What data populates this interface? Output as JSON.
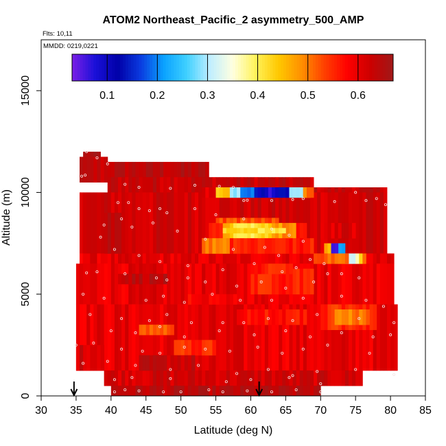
{
  "chart_data": {
    "type": "heatmap",
    "title": "ATOM2 Northeast_Pacific_2 asymmetry_500_AMP",
    "flights_note": "Flts: 10,11",
    "date_note": "MMDD: 0219,0221",
    "xlabel": "Latitude (deg N)",
    "ylabel": "Altitude (m)",
    "xlim": [
      30,
      85
    ],
    "ylim": [
      0,
      17500
    ],
    "xticks": [
      30,
      35,
      40,
      45,
      50,
      55,
      60,
      65,
      70,
      75,
      80,
      85
    ],
    "yticks": [
      0,
      5000,
      10000,
      15000
    ],
    "colorbar": {
      "range": [
        0.03,
        0.67
      ],
      "ticks": [
        0.1,
        0.2,
        0.3,
        0.4,
        0.5,
        0.6
      ],
      "colors": [
        "#7b1fe6",
        "#1a10d8",
        "#0000a8",
        "#0a3ce0",
        "#0aa2ff",
        "#3fd0ff",
        "#bfeeff",
        "#ffffe0",
        "#fff35a",
        "#ffc800",
        "#ff9000",
        "#ff4000",
        "#ff0000",
        "#cc0000",
        "#a01818"
      ]
    },
    "arrows_latitude": [
      34.7,
      61.2
    ],
    "cell_size": {
      "lat": 0.5,
      "alt": 250
    },
    "blocks": [
      {
        "lat": [
          36.0,
          38.5
        ],
        "alt": [
          11750,
          12000
        ],
        "value": 0.65
      },
      {
        "lat": [
          38.5,
          39.5
        ],
        "alt": [
          11500,
          11750
        ],
        "value": 0.65
      },
      {
        "lat": [
          35.5,
          39.5
        ],
        "alt": [
          10500,
          11750
        ],
        "value": 0.63
      },
      {
        "lat": [
          39.5,
          54.0
        ],
        "alt": [
          10750,
          11500
        ],
        "value": 0.64
      },
      {
        "lat": [
          39.5,
          69.0
        ],
        "alt": [
          10000,
          10750
        ],
        "value": 0.63
      },
      {
        "lat": [
          69.0,
          79.5
        ],
        "alt": [
          10000,
          10250
        ],
        "value": 0.63
      },
      {
        "lat": [
          35.5,
          79.5
        ],
        "alt": [
          7000,
          10000
        ],
        "value": 0.62
      },
      {
        "lat": [
          35.5,
          80.5
        ],
        "alt": [
          6500,
          7000
        ],
        "value": 0.6
      },
      {
        "lat": [
          35.0,
          80.5
        ],
        "alt": [
          4500,
          6500
        ],
        "value": 0.6
      },
      {
        "lat": [
          35.0,
          81.0
        ],
        "alt": [
          1250,
          4500
        ],
        "value": 0.6
      },
      {
        "lat": [
          35.0,
          39.0
        ],
        "alt": [
          1250,
          2500
        ],
        "value": 0.62
      },
      {
        "lat": [
          39.0,
          76.0
        ],
        "alt": [
          500,
          1250
        ],
        "value": 0.62
      },
      {
        "lat": [
          40.0,
          70.0
        ],
        "alt": [
          0,
          500
        ],
        "value": 0.64
      },
      {
        "lat": [
          53.0,
          69.0
        ],
        "alt": [
          9750,
          10250
        ],
        "value": 0.35,
        "grad": [
          0.6,
          0.45,
          0.3,
          0.2,
          0.12,
          0.08,
          0.12,
          0.3,
          0.5
        ]
      },
      {
        "lat": [
          67.5,
          68.5
        ],
        "alt": [
          9750,
          10250
        ],
        "value": 0.5
      },
      {
        "lat": [
          54.0,
          68.0
        ],
        "alt": [
          7750,
          8500
        ],
        "value": 0.45,
        "grad": [
          0.55,
          0.45,
          0.42,
          0.4,
          0.43,
          0.47,
          0.5,
          0.55
        ]
      },
      {
        "lat": [
          56.0,
          65.0
        ],
        "alt": [
          8000,
          8250
        ],
        "value": 0.42
      },
      {
        "lat": [
          53.0,
          57.0
        ],
        "alt": [
          7000,
          7750
        ],
        "value": 0.5
      },
      {
        "lat": [
          57.0,
          69.0
        ],
        "alt": [
          7000,
          7750
        ],
        "value": 0.56
      },
      {
        "lat": [
          55.0,
          64.0
        ],
        "alt": [
          8500,
          8750
        ],
        "value": 0.53
      },
      {
        "lat": [
          70.5,
          72.0
        ],
        "alt": [
          6750,
          7500
        ],
        "value": 0.47
      },
      {
        "lat": [
          72.0,
          73.5
        ],
        "alt": [
          6750,
          7500
        ],
        "value": 0.2
      },
      {
        "lat": [
          71.5,
          72.5
        ],
        "alt": [
          7000,
          7500
        ],
        "value": 0.08
      },
      {
        "lat": [
          73.5,
          76.5
        ],
        "alt": [
          6500,
          7000
        ],
        "value": 0.35,
        "grad": [
          0.3,
          0.33,
          0.36,
          0.42,
          0.5
        ]
      },
      {
        "lat": [
          69.0,
          74.0
        ],
        "alt": [
          6500,
          7000
        ],
        "value": 0.52
      },
      {
        "lat": [
          60.0,
          69.0
        ],
        "alt": [
          5000,
          6250
        ],
        "value": 0.56
      },
      {
        "lat": [
          70.0,
          78.0
        ],
        "alt": [
          3250,
          4500
        ],
        "value": 0.55
      },
      {
        "lat": [
          72.0,
          77.0
        ],
        "alt": [
          3500,
          4250
        ],
        "value": 0.5
      },
      {
        "lat": [
          44.0,
          49.0
        ],
        "alt": [
          3000,
          3500
        ],
        "value": 0.52
      },
      {
        "lat": [
          49.0,
          55.0
        ],
        "alt": [
          2000,
          2750
        ],
        "value": 0.55
      },
      {
        "lat": [
          58.0,
          68.0
        ],
        "alt": [
          3500,
          4250
        ],
        "value": 0.57
      },
      {
        "lat": [
          60.0,
          66.0
        ],
        "alt": [
          6000,
          6500
        ],
        "value": 0.56
      },
      {
        "lat": [
          39.0,
          42.0
        ],
        "alt": [
          7000,
          9000
        ],
        "value": 0.64
      },
      {
        "lat": [
          41.0,
          48.0
        ],
        "alt": [
          5500,
          6000
        ],
        "value": 0.64
      },
      {
        "lat": [
          44.0,
          52.0
        ],
        "alt": [
          1250,
          2000
        ],
        "value": 0.63
      },
      {
        "lat": [
          51.0,
          58.0
        ],
        "alt": [
          4500,
          5000
        ],
        "value": 0.58
      },
      {
        "lat": [
          70.0,
          75.0
        ],
        "alt": [
          7750,
          8500
        ],
        "value": 0.61
      }
    ],
    "points": [
      [
        36.5,
        12000
      ],
      [
        38.0,
        11700
      ],
      [
        39.5,
        11400
      ],
      [
        35.8,
        10800
      ],
      [
        36.3,
        10850
      ],
      [
        42.0,
        10400
      ],
      [
        44.0,
        10250
      ],
      [
        48.5,
        10200
      ],
      [
        52.0,
        10350
      ],
      [
        55.5,
        10300
      ],
      [
        57.5,
        10250
      ],
      [
        59.0,
        9600
      ],
      [
        59.5,
        9620
      ],
      [
        63.0,
        9600
      ],
      [
        66.0,
        9650
      ],
      [
        67.5,
        9700
      ],
      [
        72.0,
        9550
      ],
      [
        75.0,
        10000
      ],
      [
        76.5,
        9600
      ],
      [
        78.0,
        9700
      ],
      [
        79.3,
        9400
      ],
      [
        41.0,
        9500
      ],
      [
        42.5,
        9500
      ],
      [
        44.0,
        9200
      ],
      [
        45.5,
        9100
      ],
      [
        47.0,
        9200
      ],
      [
        48.0,
        9000
      ],
      [
        52.0,
        9200
      ],
      [
        55.0,
        8900
      ],
      [
        59.0,
        8700
      ],
      [
        63.0,
        8200
      ],
      [
        65.5,
        7900
      ],
      [
        67.5,
        7600
      ],
      [
        39.0,
        8400
      ],
      [
        41.5,
        8700
      ],
      [
        43.0,
        8300
      ],
      [
        46.0,
        8500
      ],
      [
        49.5,
        8100
      ],
      [
        53.5,
        7700
      ],
      [
        57.5,
        7200
      ],
      [
        62.0,
        7300
      ],
      [
        64.0,
        6900
      ],
      [
        68.5,
        6700
      ],
      [
        70.5,
        6500
      ],
      [
        38.5,
        7800
      ],
      [
        40.5,
        7200
      ],
      [
        44.0,
        6900
      ],
      [
        47.0,
        6600
      ],
      [
        51.0,
        6400
      ],
      [
        56.0,
        6200
      ],
      [
        60.5,
        6500
      ],
      [
        64.5,
        6100
      ],
      [
        66.5,
        6300
      ],
      [
        36.5,
        6050
      ],
      [
        38.0,
        6100
      ],
      [
        42.0,
        6000
      ],
      [
        46.5,
        5800
      ],
      [
        48.0,
        5700
      ],
      [
        51.0,
        5800
      ],
      [
        53.5,
        5600
      ],
      [
        58.0,
        5400
      ],
      [
        61.5,
        5600
      ],
      [
        65.0,
        5300
      ],
      [
        69.0,
        5600
      ],
      [
        71.0,
        6000
      ],
      [
        73.0,
        6000
      ],
      [
        75.5,
        5800
      ],
      [
        36.0,
        5000
      ],
      [
        39.0,
        4800
      ],
      [
        45.0,
        4700
      ],
      [
        47.5,
        4900
      ],
      [
        50.5,
        4600
      ],
      [
        54.5,
        5000
      ],
      [
        58.5,
        4700
      ],
      [
        63.0,
        4700
      ],
      [
        67.5,
        4800
      ],
      [
        73.0,
        4900
      ],
      [
        76.5,
        4700
      ],
      [
        79.0,
        4400
      ],
      [
        37.0,
        4000
      ],
      [
        41.5,
        3800
      ],
      [
        45.5,
        3700
      ],
      [
        48.0,
        4000
      ],
      [
        51.5,
        3600
      ],
      [
        56.0,
        3600
      ],
      [
        59.0,
        3600
      ],
      [
        62.5,
        3800
      ],
      [
        66.0,
        3700
      ],
      [
        69.5,
        4000
      ],
      [
        75.5,
        3800
      ],
      [
        80.5,
        3600
      ],
      [
        40.0,
        3200
      ],
      [
        43.5,
        3100
      ],
      [
        47.0,
        3400
      ],
      [
        50.5,
        2900
      ],
      [
        55.5,
        3200
      ],
      [
        60.5,
        3000
      ],
      [
        65.0,
        3200
      ],
      [
        68.5,
        2900
      ],
      [
        73.0,
        3100
      ],
      [
        77.5,
        2900
      ],
      [
        80.0,
        3000
      ],
      [
        35.0,
        2500
      ],
      [
        37.5,
        2600
      ],
      [
        41.5,
        2300
      ],
      [
        44.5,
        2200
      ],
      [
        47.0,
        2100
      ],
      [
        50.5,
        2400
      ],
      [
        53.5,
        2300
      ],
      [
        57.0,
        2200
      ],
      [
        61.0,
        2400
      ],
      [
        64.5,
        2100
      ],
      [
        67.5,
        2300
      ],
      [
        71.0,
        2500
      ],
      [
        77.0,
        2100
      ],
      [
        36.0,
        1600
      ],
      [
        39.5,
        1700
      ],
      [
        43.5,
        1500
      ],
      [
        48.5,
        1300
      ],
      [
        52.5,
        1500
      ],
      [
        58.0,
        1100
      ],
      [
        62.5,
        1300
      ],
      [
        66.0,
        1000
      ],
      [
        69.5,
        1200
      ],
      [
        75.0,
        1300
      ],
      [
        80.5,
        1050
      ],
      [
        40.5,
        800
      ],
      [
        43.0,
        900
      ],
      [
        48.5,
        850
      ],
      [
        56.5,
        700
      ],
      [
        60.0,
        800
      ],
      [
        65.5,
        900
      ],
      [
        70.0,
        600
      ],
      [
        40.5,
        200
      ],
      [
        42.0,
        300
      ],
      [
        44.0,
        250
      ],
      [
        47.5,
        200
      ],
      [
        50.0,
        200
      ],
      [
        54.0,
        300
      ],
      [
        56.0,
        200
      ],
      [
        59.5,
        250
      ],
      [
        63.0,
        200
      ],
      [
        66.5,
        300
      ],
      [
        70.0,
        200
      ]
    ]
  }
}
